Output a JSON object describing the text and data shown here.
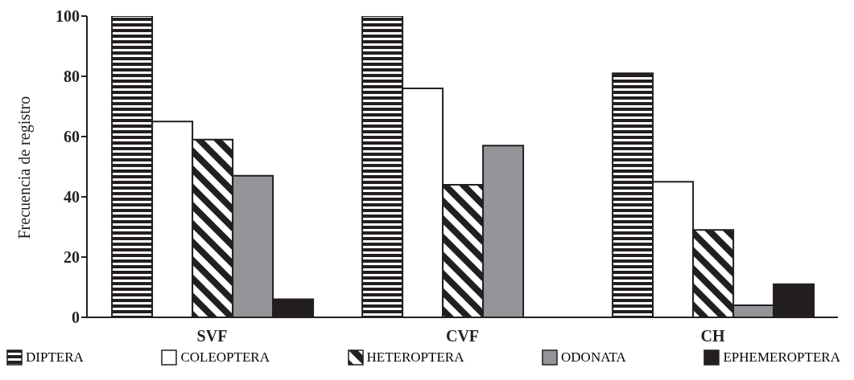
{
  "chart_data": {
    "type": "bar",
    "ylabel": "Frecuencia de registro",
    "categories": [
      "SVF",
      "CVF",
      "CH"
    ],
    "series": [
      {
        "name": "DIPTERA",
        "color": "#231f20",
        "values": [
          100,
          100,
          81
        ]
      },
      {
        "name": "COLEOPTERA",
        "color": "#ffffff",
        "values": [
          65,
          76,
          45
        ]
      },
      {
        "name": "HETEROPTERA",
        "color": "#231f20",
        "values": [
          59,
          44,
          29
        ]
      },
      {
        "name": "ODONATA",
        "color": "#939598",
        "values": [
          47,
          57,
          4
        ]
      },
      {
        "name": "EPHEMEROPTERA",
        "color": "#231f20",
        "values": [
          6,
          null,
          11
        ]
      }
    ],
    "ylim": [
      0,
      100
    ],
    "yticks": [
      0,
      20,
      40,
      60,
      80,
      100
    ],
    "grid": false,
    "legend": "bottom"
  }
}
